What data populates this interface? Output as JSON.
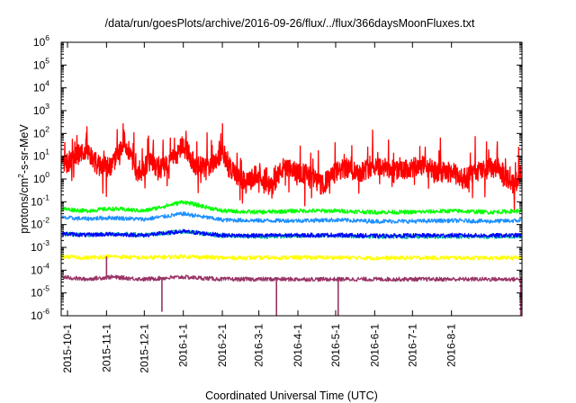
{
  "chart_data": {
    "type": "line",
    "title": "/data/run/goesPlots/archive/2016-09-26/flux/../flux/366daysMoonFluxes.txt",
    "xlabel": "Coordinated Universal Time (UTC)",
    "ylabel": {
      "prefix": "protons/cm",
      "sup": "2",
      "suffix": "-s-sr-MeV"
    },
    "x_range": [
      "2015-09-26",
      "2016-09-26"
    ],
    "y_scale": "log",
    "ylim": [
      1e-06,
      1000000.0
    ],
    "grid": false,
    "x_ticks": [
      "2015-10-1",
      "2015-11-1",
      "2015-12-1",
      "2016-1-1",
      "2016-2-1",
      "2016-3-1",
      "2016-4-1",
      "2016-5-1",
      "2016-6-1",
      "2016-7-1",
      "2016-8-1"
    ],
    "y_ticks": [
      {
        "base": "10",
        "exp": "-6"
      },
      {
        "base": "10",
        "exp": "-5"
      },
      {
        "base": "10",
        "exp": "-4"
      },
      {
        "base": "10",
        "exp": "-3"
      },
      {
        "base": "10",
        "exp": "-2"
      },
      {
        "base": "10",
        "exp": "-1"
      },
      {
        "base": "10",
        "exp": "0"
      },
      {
        "base": "10",
        "exp": "1"
      },
      {
        "base": "10",
        "exp": "2"
      },
      {
        "base": "10",
        "exp": "3"
      },
      {
        "base": "10",
        "exp": "4"
      },
      {
        "base": "10",
        "exp": "5"
      },
      {
        "base": "10",
        "exp": "6"
      }
    ],
    "series": [
      {
        "color": "#ff0000",
        "x": [
          "2015-09-26",
          "2015-10-05",
          "2015-10-15",
          "2015-10-25",
          "2015-11-05",
          "2015-11-15",
          "2015-11-25",
          "2015-12-05",
          "2015-12-15",
          "2015-12-25",
          "2016-01-01",
          "2016-01-10",
          "2016-01-20",
          "2016-02-01",
          "2016-02-10",
          "2016-02-20",
          "2016-03-01",
          "2016-03-10",
          "2016-03-20",
          "2016-04-01",
          "2016-04-10",
          "2016-04-20",
          "2016-05-01",
          "2016-05-10",
          "2016-05-20",
          "2016-06-01",
          "2016-06-10",
          "2016-06-20",
          "2016-07-01",
          "2016-07-10",
          "2016-07-20",
          "2016-08-01",
          "2016-08-10",
          "2016-08-20",
          "2016-09-01",
          "2016-09-10",
          "2016-09-20",
          "2016-09-26"
        ],
        "values": [
          3,
          8,
          20,
          4,
          3,
          60,
          2,
          5,
          3,
          8,
          40,
          4,
          3,
          15,
          2,
          0.6,
          2,
          0.4,
          3,
          2,
          1.5,
          0.5,
          2,
          3,
          2,
          4,
          3,
          2,
          3,
          4,
          2,
          2,
          1,
          2,
          3,
          2,
          0.5,
          3
        ]
      },
      {
        "color": "#00ff00",
        "x": [
          "2015-09-26",
          "2015-10-15",
          "2015-11-05",
          "2015-12-01",
          "2016-01-01",
          "2016-02-01",
          "2016-03-01",
          "2016-04-01",
          "2016-05-01",
          "2016-06-01",
          "2016-07-01",
          "2016-08-01",
          "2016-09-01",
          "2016-09-26"
        ],
        "values": [
          0.05,
          0.04,
          0.05,
          0.04,
          0.1,
          0.04,
          0.035,
          0.04,
          0.04,
          0.035,
          0.035,
          0.04,
          0.035,
          0.04
        ]
      },
      {
        "color": "#1e90ff",
        "x": [
          "2015-09-26",
          "2015-10-15",
          "2015-11-05",
          "2015-12-01",
          "2016-01-01",
          "2016-02-01",
          "2016-03-01",
          "2016-04-01",
          "2016-05-01",
          "2016-06-01",
          "2016-07-01",
          "2016-08-01",
          "2016-09-01",
          "2016-09-26"
        ],
        "values": [
          0.02,
          0.018,
          0.02,
          0.017,
          0.03,
          0.016,
          0.015,
          0.015,
          0.016,
          0.014,
          0.014,
          0.015,
          0.014,
          0.015
        ]
      },
      {
        "color": "#00b0a0",
        "x": [
          "2015-09-26",
          "2015-10-15",
          "2015-11-05",
          "2015-12-01",
          "2016-01-01",
          "2016-02-01",
          "2016-03-01",
          "2016-04-01",
          "2016-05-01",
          "2016-06-01",
          "2016-07-01",
          "2016-08-01",
          "2016-09-01",
          "2016-09-26"
        ],
        "values": [
          0.004,
          0.0035,
          0.004,
          0.0035,
          0.005,
          0.0032,
          0.003,
          0.0032,
          0.0033,
          0.003,
          0.003,
          0.003,
          0.003,
          0.0031
        ]
      },
      {
        "color": "#0000ff",
        "x": [
          "2015-09-26",
          "2015-10-15",
          "2015-11-05",
          "2015-12-01",
          "2016-01-01",
          "2016-02-01",
          "2016-03-01",
          "2016-04-01",
          "2016-05-01",
          "2016-06-01",
          "2016-07-01",
          "2016-08-01",
          "2016-09-01",
          "2016-09-26"
        ],
        "values": [
          0.004,
          0.0035,
          0.0038,
          0.0034,
          0.005,
          0.0034,
          0.0033,
          0.0034,
          0.0035,
          0.0032,
          0.0033,
          0.0034,
          0.0033,
          0.0034
        ]
      },
      {
        "color": "#ffff00",
        "x": [
          "2015-09-26",
          "2015-10-15",
          "2015-11-05",
          "2015-12-01",
          "2016-01-01",
          "2016-02-01",
          "2016-03-01",
          "2016-04-01",
          "2016-05-01",
          "2016-06-01",
          "2016-07-01",
          "2016-08-01",
          "2016-09-01",
          "2016-09-26"
        ],
        "values": [
          0.0004,
          0.00035,
          0.0004,
          0.00035,
          0.0004,
          0.00035,
          0.00035,
          0.00036,
          0.00036,
          0.00034,
          0.00035,
          0.00035,
          0.00034,
          0.00035
        ]
      },
      {
        "color": "#993366",
        "x": [
          "2015-09-26",
          "2015-10-15",
          "2015-11-05",
          "2015-12-01",
          "2016-01-01",
          "2016-02-01",
          "2016-03-01",
          "2016-04-01",
          "2016-05-01",
          "2016-06-01",
          "2016-07-01",
          "2016-08-01",
          "2016-09-01",
          "2016-09-26"
        ],
        "values": [
          5e-05,
          4e-05,
          5e-05,
          4e-05,
          5e-05,
          4e-05,
          4e-05,
          4e-05,
          4e-05,
          4e-05,
          4e-05,
          4e-05,
          4e-05,
          4e-05
        ],
        "dips": [
          {
            "x": "2015-11-01",
            "y": 0.0004
          },
          {
            "x": "2015-12-15",
            "y": 1.5e-06
          },
          {
            "x": "2016-03-15",
            "y": 1e-06
          },
          {
            "x": "2016-05-03",
            "y": 1e-06
          },
          {
            "x": "2016-09-25",
            "y": 1e-06
          }
        ]
      }
    ]
  }
}
